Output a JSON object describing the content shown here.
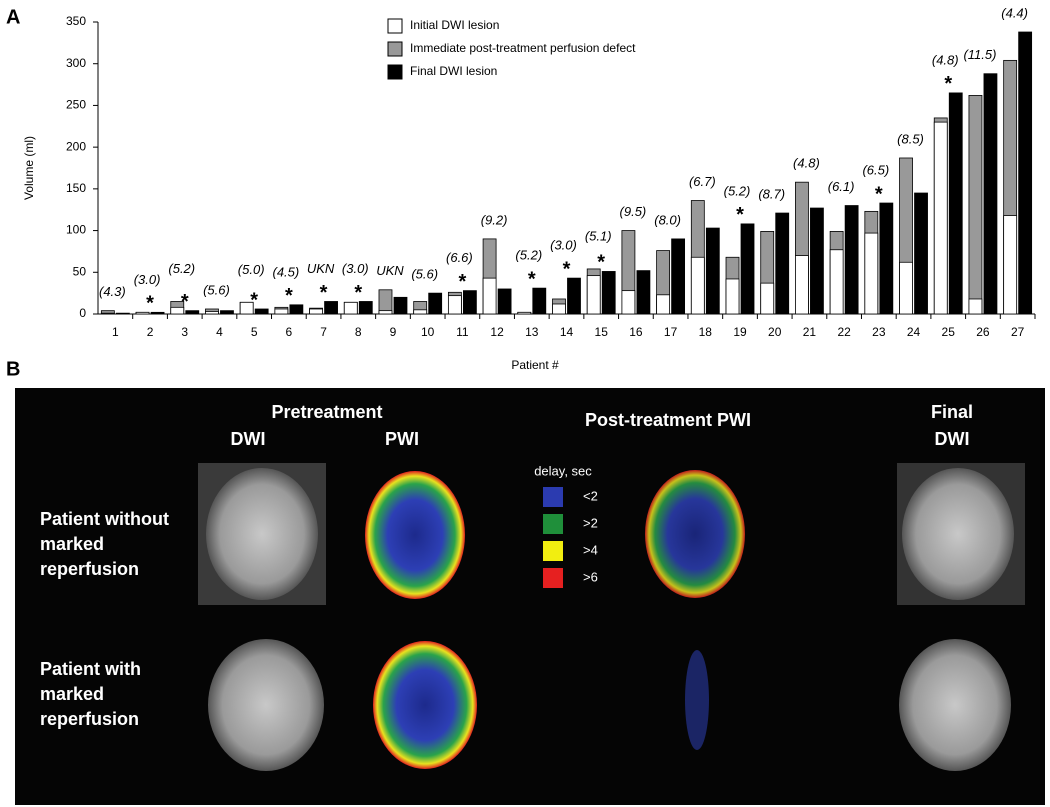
{
  "panel_a_label": "A",
  "chart_data": {
    "type": "bar",
    "y_label": "Volume (ml)",
    "x_label": "Patient #",
    "categories": [
      "1",
      "2",
      "3",
      "4",
      "5",
      "6",
      "7",
      "8",
      "9",
      "10",
      "11",
      "12",
      "13",
      "14",
      "15",
      "16",
      "17",
      "18",
      "19",
      "20",
      "21",
      "22",
      "23",
      "24",
      "25",
      "26",
      "27"
    ],
    "series": [
      {
        "name": "Initial  DWI lesion",
        "color": "#ffffff",
        "values": [
          1,
          2,
          8,
          3,
          14,
          6,
          6,
          14,
          4,
          5,
          22,
          43,
          2,
          12,
          46,
          28,
          23,
          68,
          42,
          37,
          70,
          77,
          97,
          62,
          230,
          18,
          118
        ]
      },
      {
        "name": "Immediate post-treatment perfusion defect",
        "color": "#999999",
        "values": [
          4,
          2,
          15,
          6,
          14,
          8,
          7,
          14,
          29,
          15,
          26,
          90,
          2,
          18,
          54,
          100,
          76,
          136,
          68,
          99,
          158,
          99,
          123,
          187,
          235,
          262,
          304
        ]
      },
      {
        "name": "Final DWI lesion",
        "color": "#000000",
        "values": [
          1,
          2,
          4,
          4,
          6,
          11,
          15,
          15,
          20,
          25,
          28,
          30,
          31,
          43,
          51,
          52,
          90,
          103,
          108,
          121,
          127,
          130,
          133,
          145,
          265,
          288,
          338
        ]
      }
    ],
    "ratio_labels": [
      "(4.3)",
      "(3.0)",
      "(5.2)",
      "(5.6)",
      "(5.0)",
      "(4.5)",
      "UKN",
      "(3.0)",
      "UKN",
      "(5.6)",
      "(6.6)",
      "(9.2)",
      "(5.2)",
      "(3.0)",
      "(5.1)",
      "(9.5)",
      "(8.0)",
      "(6.7)",
      "(5.2)",
      "(8.7)",
      "(4.8)",
      "(6.1)",
      "(6.5)",
      "(8.5)",
      "(4.8)",
      "(11.5)",
      "(4.4)"
    ],
    "asterisks": [
      null,
      "*",
      "*",
      null,
      "*",
      "*",
      "*",
      "*",
      null,
      null,
      "*",
      null,
      "*",
      "*",
      "*",
      null,
      null,
      null,
      "*",
      null,
      null,
      null,
      "*",
      null,
      "*",
      null,
      null
    ],
    "ylim": [
      0,
      350
    ],
    "yticks": [
      0,
      50,
      100,
      150,
      200,
      250,
      300,
      350
    ]
  },
  "panel_b": {
    "label": "B",
    "pretreatment": "Pretreatment",
    "col_dwi": "DWI",
    "col_pwi": "PWI",
    "post_treatment": "Post-treatment PWI",
    "final": "Final",
    "final_dwi": "DWI",
    "delay_title": "delay, sec",
    "delay_legend": [
      {
        "label": "<2",
        "color": "#2b3bb0"
      },
      {
        "label": ">2",
        "color": "#1f8f3a"
      },
      {
        "label": ">4",
        "color": "#f2ee10"
      },
      {
        "label": ">6",
        "color": "#e62020"
      }
    ],
    "rows": [
      [
        "Patient without",
        "marked",
        "reperfusion"
      ],
      [
        "Patient with",
        "marked",
        "reperfusion"
      ]
    ]
  }
}
